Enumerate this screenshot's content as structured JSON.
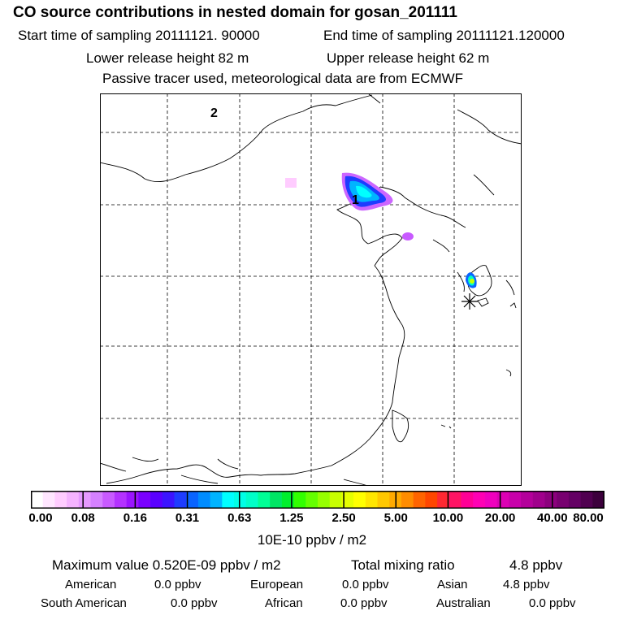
{
  "header": {
    "title": "CO  source contributions in nested domain for gosan_201111",
    "start_label": "Start time of sampling 20111121. 90000",
    "end_label": "End time of sampling 20111121.120000",
    "lower_label": "Lower release height   82 m",
    "upper_label": "Upper release height   62 m",
    "note": "Passive tracer used, meteorological data are from ECMWF"
  },
  "map": {
    "label_1": "1",
    "label_2": "2",
    "receptor_marker": "asterisk-icon"
  },
  "colorbar": {
    "colors": [
      "#ffffff",
      "#ffe6ff",
      "#ffccff",
      "#f5b3ff",
      "#e699ff",
      "#d580ff",
      "#c85aff",
      "#b432ff",
      "#9b14ff",
      "#7a00ff",
      "#5a00ff",
      "#3c14ff",
      "#1e3cff",
      "#0a64ff",
      "#008cff",
      "#00b4ff",
      "#00ffff",
      "#00ffe6",
      "#00ffc8",
      "#00ff96",
      "#00e664",
      "#00f02d",
      "#32ff00",
      "#64ff00",
      "#96ff00",
      "#c8ff00",
      "#e6ff00",
      "#ffff00",
      "#ffe600",
      "#ffc800",
      "#ffaa00",
      "#ff8c00",
      "#ff6400",
      "#ff4600",
      "#ff2832",
      "#ff1464",
      "#ff0096",
      "#ff00b4",
      "#f000be",
      "#dc00b4",
      "#c800aa",
      "#b4009b",
      "#a0008c",
      "#8c007d",
      "#780070",
      "#640064",
      "#500050",
      "#3c003c"
    ],
    "ticks": [
      "0.00",
      "0.08",
      "0.16",
      "0.31",
      "0.63",
      "1.25",
      "2.50",
      "5.00",
      "10.00",
      "20.00",
      "40.00",
      "80.00"
    ],
    "unit": "10E-10 ppbv / m2"
  },
  "stats": {
    "max_label": "Maximum value  0.520E-09 ppbv / m2",
    "total_label": "Total mixing ratio",
    "total_value": "4.8 ppbv",
    "regions": [
      {
        "name": "American",
        "value": "0.0 ppbv"
      },
      {
        "name": "European",
        "value": "0.0 ppbv"
      },
      {
        "name": "Asian",
        "value": "4.8 ppbv"
      },
      {
        "name": "South American",
        "value": "0.0 ppbv"
      },
      {
        "name": "African",
        "value": "0.0 ppbv"
      },
      {
        "name": "Australian",
        "value": "0.0 ppbv"
      }
    ]
  }
}
